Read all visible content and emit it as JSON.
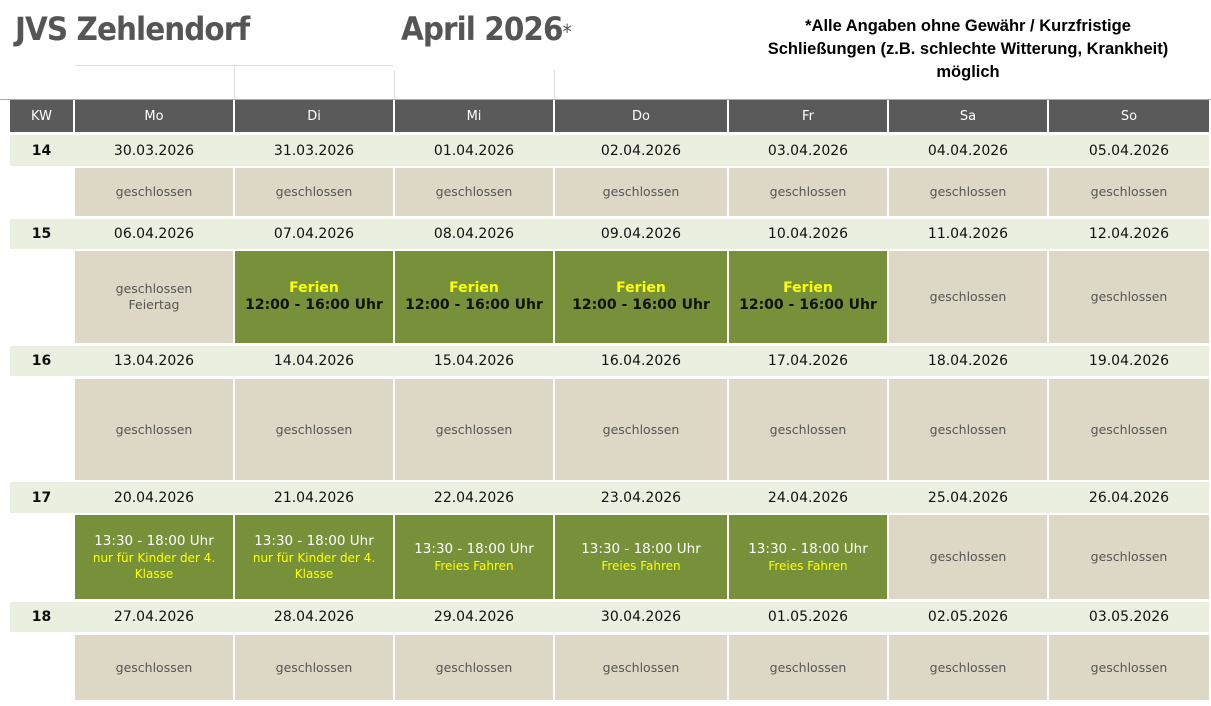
{
  "header": {
    "title": "JVS Zehlendorf",
    "month": "April 2026",
    "asterisk": "*",
    "note_lines": [
      "*Alle Angaben ohne Gewähr / Kurzfristige",
      "Schließungen (z.B. schlechte Witterung, Krankheit)",
      "möglich"
    ]
  },
  "colors": {
    "header_bg": "#5a5a5a",
    "date_row_bg": "#ebefdf",
    "closed_bg": "#ddd8c6",
    "open_bg": "#76913a",
    "highlight_text": "#ffff00"
  },
  "columns": [
    "KW",
    "Mo",
    "Di",
    "Mi",
    "Do",
    "Fr",
    "Sa",
    "So"
  ],
  "weeks": [
    {
      "kw": "14",
      "dates": [
        "30.03.2026",
        "31.03.2026",
        "01.04.2026",
        "02.04.2026",
        "03.04.2026",
        "04.04.2026",
        "05.04.2026"
      ],
      "days": [
        {
          "status": "closed",
          "lines": [
            "geschlossen"
          ]
        },
        {
          "status": "closed",
          "lines": [
            "geschlossen"
          ]
        },
        {
          "status": "closed",
          "lines": [
            "geschlossen"
          ]
        },
        {
          "status": "closed",
          "lines": [
            "geschlossen"
          ]
        },
        {
          "status": "closed",
          "lines": [
            "geschlossen"
          ]
        },
        {
          "status": "closed",
          "lines": [
            "geschlossen"
          ]
        },
        {
          "status": "closed",
          "lines": [
            "geschlossen"
          ]
        }
      ]
    },
    {
      "kw": "15",
      "dates": [
        "06.04.2026",
        "07.04.2026",
        "08.04.2026",
        "09.04.2026",
        "10.04.2026",
        "11.04.2026",
        "12.04.2026"
      ],
      "days": [
        {
          "status": "closed",
          "lines": [
            "geschlossen",
            "Feiertag"
          ]
        },
        {
          "status": "ferien",
          "lines": [
            "Ferien",
            "12:00 - 16:00 Uhr"
          ]
        },
        {
          "status": "ferien",
          "lines": [
            "Ferien",
            "12:00 - 16:00 Uhr"
          ]
        },
        {
          "status": "ferien",
          "lines": [
            "Ferien",
            "12:00 - 16:00 Uhr"
          ]
        },
        {
          "status": "ferien",
          "lines": [
            "Ferien",
            "12:00 - 16:00 Uhr"
          ]
        },
        {
          "status": "closed",
          "lines": [
            "geschlossen"
          ]
        },
        {
          "status": "closed",
          "lines": [
            "geschlossen"
          ]
        }
      ]
    },
    {
      "kw": "16",
      "dates": [
        "13.04.2026",
        "14.04.2026",
        "15.04.2026",
        "16.04.2026",
        "17.04.2026",
        "18.04.2026",
        "19.04.2026"
      ],
      "days": [
        {
          "status": "closed",
          "lines": [
            "geschlossen"
          ]
        },
        {
          "status": "closed",
          "lines": [
            "geschlossen"
          ]
        },
        {
          "status": "closed",
          "lines": [
            "geschlossen"
          ]
        },
        {
          "status": "closed",
          "lines": [
            "geschlossen"
          ]
        },
        {
          "status": "closed",
          "lines": [
            "geschlossen"
          ]
        },
        {
          "status": "closed",
          "lines": [
            "geschlossen"
          ]
        },
        {
          "status": "closed",
          "lines": [
            "geschlossen"
          ]
        }
      ]
    },
    {
      "kw": "17",
      "dates": [
        "20.04.2026",
        "21.04.2026",
        "22.04.2026",
        "23.04.2026",
        "24.04.2026",
        "25.04.2026",
        "26.04.2026"
      ],
      "days": [
        {
          "status": "open",
          "lines": [
            "13:30 - 18:00 Uhr",
            "nur für Kinder der 4. Klasse"
          ]
        },
        {
          "status": "open",
          "lines": [
            "13:30 - 18:00 Uhr",
            "nur für Kinder der 4. Klasse"
          ]
        },
        {
          "status": "open",
          "lines": [
            "13:30 - 18:00 Uhr",
            "Freies Fahren"
          ]
        },
        {
          "status": "open",
          "lines": [
            "13:30 - 18:00 Uhr",
            "Freies Fahren"
          ]
        },
        {
          "status": "open",
          "lines": [
            "13:30 - 18:00 Uhr",
            "Freies Fahren"
          ]
        },
        {
          "status": "closed",
          "lines": [
            "geschlossen"
          ]
        },
        {
          "status": "closed",
          "lines": [
            "geschlossen"
          ]
        }
      ]
    },
    {
      "kw": "18",
      "dates": [
        "27.04.2026",
        "28.04.2026",
        "29.04.2026",
        "30.04.2026",
        "01.05.2026",
        "02.05.2026",
        "03.05.2026"
      ],
      "days": [
        {
          "status": "closed",
          "lines": [
            "geschlossen"
          ]
        },
        {
          "status": "closed",
          "lines": [
            "geschlossen"
          ]
        },
        {
          "status": "closed",
          "lines": [
            "geschlossen"
          ]
        },
        {
          "status": "closed",
          "lines": [
            "geschlossen"
          ]
        },
        {
          "status": "closed",
          "lines": [
            "geschlossen"
          ]
        },
        {
          "status": "closed",
          "lines": [
            "geschlossen"
          ]
        },
        {
          "status": "closed",
          "lines": [
            "geschlossen"
          ]
        }
      ]
    }
  ]
}
